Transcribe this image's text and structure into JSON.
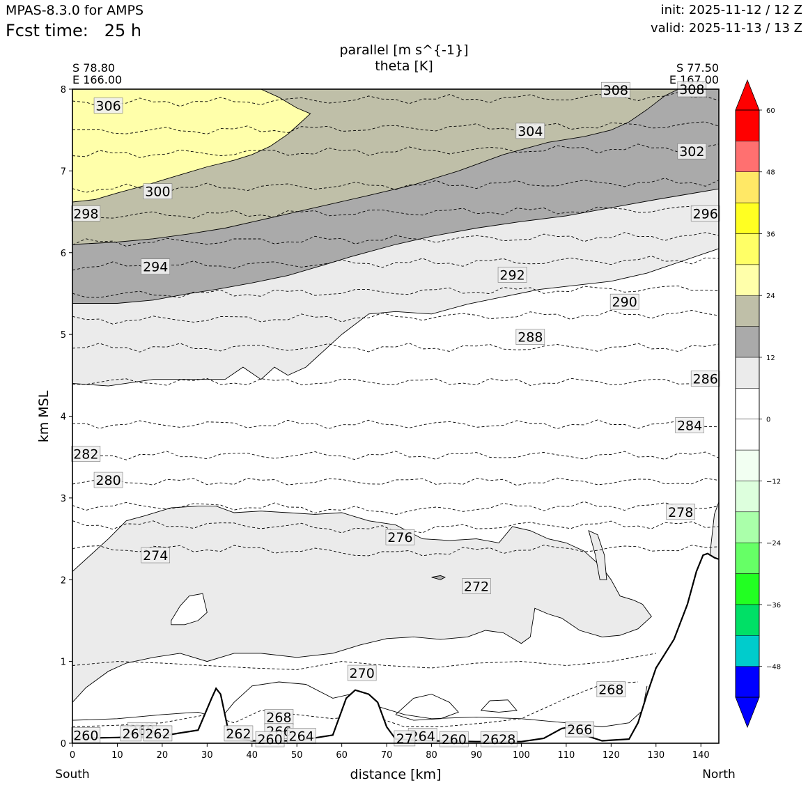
{
  "header": {
    "model": "MPAS-8.3.0 for AMPS",
    "fcst_label": "Fcst time:",
    "fcst_value": "25 h",
    "init": "init: 2025-11-12 / 12 Z",
    "valid": "valid: 2025-11-13 / 13 Z"
  },
  "corners": {
    "left_lat": "S 78.80",
    "left_lon": "E 166.00",
    "right_lat": "S 77.50",
    "right_lon": "E 167.00"
  },
  "colorbar": {
    "levels": [
      "60",
      "48",
      "36",
      "24",
      "12",
      "0",
      "−12",
      "−24",
      "−36",
      "−48"
    ],
    "colors": [
      "#0000ff",
      "#00cccc",
      "#00e066",
      "#22ff22",
      "#66ff66",
      "#aaffaa",
      "#ddffdd",
      "#f2fff2",
      "#ffffff",
      "#ffffff",
      "#ebebeb",
      "#aaaaaa",
      "#bfbfa8",
      "#ffffaa",
      "#ffff66",
      "#ffff22",
      "#ffe866",
      "#ff7070",
      "#ff0000"
    ],
    "over_color": "#ff0000",
    "under_color": "#0000ff"
  },
  "chart_data": {
    "type": "contour",
    "title": "parallel [m s^{-1}]",
    "subtitle": "theta [K]",
    "xlabel": "distance [km]",
    "ylabel": "km MSL",
    "x_start_label": "South",
    "x_end_label": "North",
    "xlim": [
      0,
      144
    ],
    "ylim": [
      0,
      8
    ],
    "xticks": [
      "0",
      "10",
      "20",
      "30",
      "40",
      "50",
      "60",
      "70",
      "80",
      "90",
      "100",
      "110",
      "120",
      "130",
      "140"
    ],
    "yticks": [
      "0",
      "1",
      "2",
      "3",
      "4",
      "5",
      "6",
      "7",
      "8"
    ],
    "theta_levels": [
      {
        "value": 274,
        "y": 2.38
      },
      {
        "value": 276,
        "y": 2.67
      },
      {
        "value": 278,
        "y": 2.9
      },
      {
        "value": 280,
        "y": 3.2
      },
      {
        "value": 282,
        "y": 3.52
      },
      {
        "value": 284,
        "y": 3.9
      },
      {
        "value": 286,
        "y": 4.42
      },
      {
        "value": 288,
        "y": 4.84
      },
      {
        "value": 290,
        "y": 5.17
      },
      {
        "value": 292,
        "y": 5.48
      },
      {
        "value": 294,
        "y": 5.83
      },
      {
        "value": 296,
        "y": 6.12
      },
      {
        "value": 298,
        "y": 6.45
      },
      {
        "value": 300,
        "y": 6.78
      },
      {
        "value": 302,
        "y": 7.2
      },
      {
        "value": 304,
        "y": 7.48
      },
      {
        "value": 306,
        "y": 7.83
      }
    ],
    "theta_labels": [
      {
        "text": "306",
        "x": 8,
        "y": 7.8
      },
      {
        "text": "308",
        "x": 121,
        "y": 7.99
      },
      {
        "text": "308",
        "x": 138,
        "y": 8.0
      },
      {
        "text": "304",
        "x": 102,
        "y": 7.49
      },
      {
        "text": "302",
        "x": 138,
        "y": 7.24
      },
      {
        "text": "300",
        "x": 19,
        "y": 6.75
      },
      {
        "text": "298",
        "x": 3,
        "y": 6.48
      },
      {
        "text": "296",
        "x": 141,
        "y": 6.48
      },
      {
        "text": "294",
        "x": 18.5,
        "y": 5.83
      },
      {
        "text": "292",
        "x": 98,
        "y": 5.73
      },
      {
        "text": "290",
        "x": 123,
        "y": 5.4
      },
      {
        "text": "288",
        "x": 102,
        "y": 4.97
      },
      {
        "text": "286",
        "x": 141,
        "y": 4.46
      },
      {
        "text": "284",
        "x": 137.5,
        "y": 3.89
      },
      {
        "text": "282",
        "x": 3,
        "y": 3.54
      },
      {
        "text": "280",
        "x": 8,
        "y": 3.22
      },
      {
        "text": "278",
        "x": 135.5,
        "y": 2.83
      },
      {
        "text": "276",
        "x": 73,
        "y": 2.52
      },
      {
        "text": "274",
        "x": 18.5,
        "y": 2.3
      },
      {
        "text": "272",
        "x": 90,
        "y": 1.92
      },
      {
        "text": "270",
        "x": 64.5,
        "y": 0.86
      },
      {
        "text": "268",
        "x": 120,
        "y": 0.66
      },
      {
        "text": "268",
        "x": 46,
        "y": 0.32
      },
      {
        "text": "268",
        "x": 15.5,
        "y": 0.16
      },
      {
        "text": "266",
        "x": 113,
        "y": 0.17
      },
      {
        "text": "266",
        "x": 46,
        "y": 0.15
      },
      {
        "text": "264",
        "x": 51,
        "y": 0.09
      },
      {
        "text": "264",
        "x": 78,
        "y": 0.09
      },
      {
        "text": "262",
        "x": 37,
        "y": 0.12
      },
      {
        "text": "262",
        "x": 19,
        "y": 0.12
      },
      {
        "text": "260",
        "x": 3,
        "y": 0.1
      },
      {
        "text": "260",
        "x": 44,
        "y": 0.05
      },
      {
        "text": "260",
        "x": 85,
        "y": 0.05
      },
      {
        "text": "2628",
        "x": 95,
        "y": 0.05
      },
      {
        "text": "26",
        "x": 13,
        "y": 0.12
      },
      {
        "text": "27",
        "x": 74,
        "y": 0.06
      }
    ],
    "parallel_wind_bands": [
      {
        "range": "24 to 30",
        "color": "#ffffaa",
        "region": "upper-left, 6.6-8 km, x 0-54 km"
      },
      {
        "range": "18 to 24",
        "color": "#bfbfa8",
        "region": "6.1-8 km band sloping upward to the north"
      },
      {
        "range": "12 to 18",
        "color": "#aaaaaa",
        "region": "5.4-8 km band sloping upward to the north"
      },
      {
        "range": "6 to 12",
        "color": "#ebebeb",
        "region": "4.4-6.8 km band and 0.5-2.9 km low-level region"
      }
    ],
    "terrain": [
      [
        0,
        0.06
      ],
      [
        10,
        0.07
      ],
      [
        20,
        0.09
      ],
      [
        28,
        0.16
      ],
      [
        31,
        0.55
      ],
      [
        32,
        0.67
      ],
      [
        33,
        0.6
      ],
      [
        35,
        0.08
      ],
      [
        40,
        0.03
      ],
      [
        50,
        0.03
      ],
      [
        58,
        0.1
      ],
      [
        61,
        0.55
      ],
      [
        63,
        0.65
      ],
      [
        66,
        0.6
      ],
      [
        68,
        0.5
      ],
      [
        70,
        0.2
      ],
      [
        72,
        0.05
      ],
      [
        80,
        0.03
      ],
      [
        90,
        0.02
      ],
      [
        100,
        0.02
      ],
      [
        105,
        0.06
      ],
      [
        109,
        0.18
      ],
      [
        111,
        0.2
      ],
      [
        114,
        0.1
      ],
      [
        118,
        0.03
      ],
      [
        124,
        0.05
      ],
      [
        126,
        0.25
      ],
      [
        128,
        0.6
      ],
      [
        130,
        0.92
      ],
      [
        134,
        1.27
      ],
      [
        137,
        1.7
      ],
      [
        139,
        2.1
      ],
      [
        140.5,
        2.3
      ],
      [
        141.5,
        2.32
      ],
      [
        143,
        2.27
      ],
      [
        144,
        2.25
      ]
    ]
  }
}
